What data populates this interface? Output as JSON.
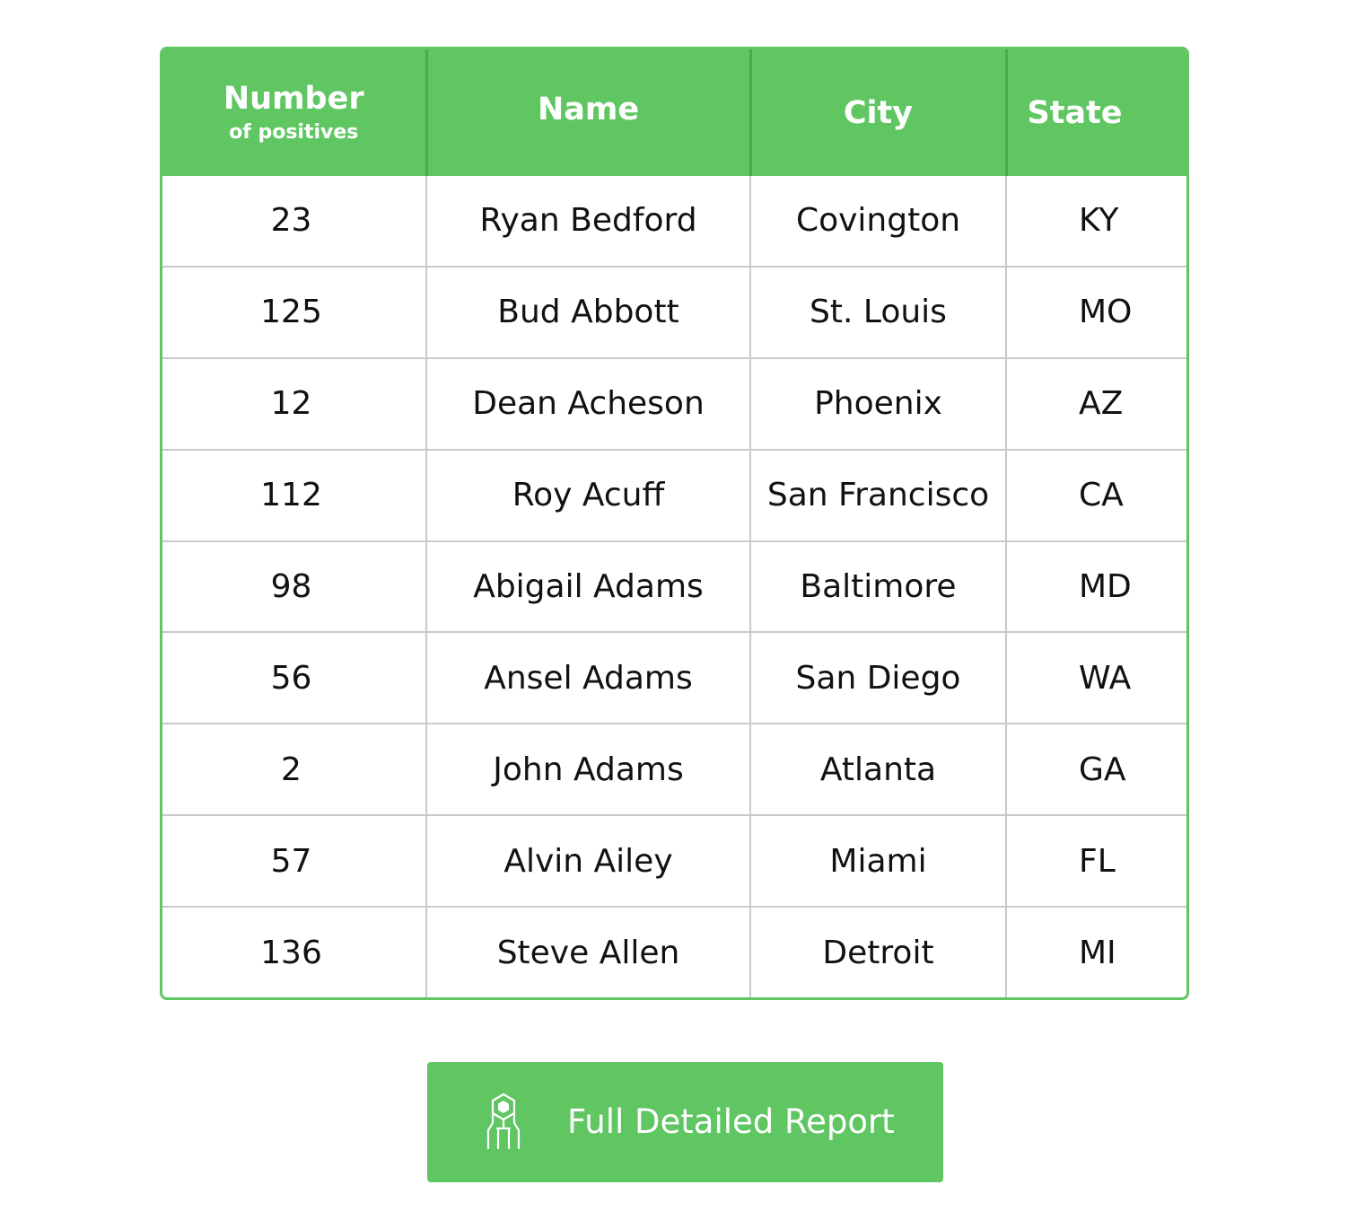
{
  "table": {
    "headers": {
      "number_main": "Number",
      "number_sub": "of positives",
      "name": "Name",
      "city": "City",
      "state": "State"
    },
    "rows": [
      {
        "number": "23",
        "name": "Ryan Bedford",
        "city": "Covington",
        "state": "KY"
      },
      {
        "number": "125",
        "name": "Bud Abbott",
        "city": "St. Louis",
        "state": "MO"
      },
      {
        "number": "12",
        "name": "Dean Acheson",
        "city": "Phoenix",
        "state": "AZ"
      },
      {
        "number": "112",
        "name": "Roy Acuff",
        "city": "San Francisco",
        "state": "CA"
      },
      {
        "number": "98",
        "name": "Abigail Adams",
        "city": "Baltimore",
        "state": "MD"
      },
      {
        "number": "56",
        "name": "Ansel Adams",
        "city": "San Diego",
        "state": "WA"
      },
      {
        "number": "2",
        "name": "John Adams",
        "city": "Atlanta",
        "state": "GA"
      },
      {
        "number": "57",
        "name": "Alvin Ailey",
        "city": "Miami",
        "state": "FL"
      },
      {
        "number": "136",
        "name": "Steve Allen",
        "city": "Detroit",
        "state": "MI"
      }
    ]
  },
  "report_button": {
    "label": "Full Detailed Report",
    "icon": "report-badge-icon"
  },
  "colors": {
    "accent": "#5fc662",
    "grid": "#c9c9c9",
    "text": "#111111"
  }
}
